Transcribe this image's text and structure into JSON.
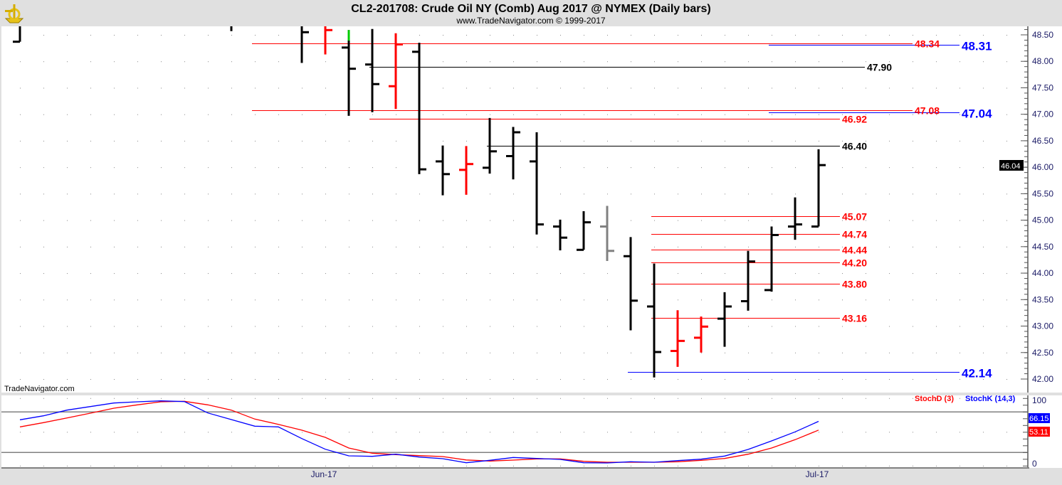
{
  "header": {
    "title": "CL2-201708:  Crude Oil NY (Comb) Aug 2017 @ NYMEX  (Daily bars)",
    "subtitle": "www.TradeNavigator.com © 1999-2017",
    "logo": "sextant-logo"
  },
  "watermark": "TradeNavigator.com",
  "colors": {
    "up": "#000000",
    "down": "#ff0000",
    "neutral": "#808080",
    "highlight": "#00cc00",
    "stochK": "#0000ff",
    "stochD": "#ff0000",
    "levelRed": "#ff0000",
    "levelBlue": "#0000ff",
    "levelBlack": "#000000"
  },
  "chart_data": [
    {
      "type": "ohlc",
      "title": "CL2-201708:  Crude Oil NY (Comb) Aug 2017 @ NYMEX  (Daily bars)",
      "x_tick_labels": [
        {
          "label": "Jun-17",
          "bar": 13
        },
        {
          "label": "Jul-17",
          "bar": 34
        }
      ],
      "y_ticks": [
        "48.50",
        "48.00",
        "47.50",
        "47.00",
        "46.50",
        "46.00",
        "45.50",
        "45.00",
        "44.50",
        "44.00",
        "43.50",
        "43.00",
        "42.50",
        "42.00"
      ],
      "ylim": [
        41.9,
        48.65
      ],
      "grid": "dotted",
      "last_price_label": "46.04",
      "bars": [
        {
          "o": 48.37,
          "h": 48.9,
          "l": 48.37,
          "c": 48.8,
          "color": "up"
        },
        null,
        null,
        null,
        null,
        null,
        null,
        null,
        null,
        {
          "o": 48.8,
          "h": 48.9,
          "l": 48.57,
          "c": 48.8,
          "color": "up"
        },
        null,
        null,
        {
          "o": 48.75,
          "h": 48.9,
          "l": 47.97,
          "c": 48.55,
          "color": "up"
        },
        {
          "o": 48.7,
          "h": 48.7,
          "l": 48.13,
          "c": 48.59,
          "color": "down"
        },
        {
          "o": 48.26,
          "h": 48.59,
          "l": 46.97,
          "c": 47.86,
          "color": "up",
          "highlight_from": 48.39
        },
        {
          "o": 47.94,
          "h": 48.61,
          "l": 47.04,
          "c": 47.57,
          "color": "up"
        },
        {
          "o": 47.53,
          "h": 48.53,
          "l": 47.1,
          "c": 48.32,
          "color": "down"
        },
        {
          "o": 48.18,
          "h": 48.35,
          "l": 45.87,
          "c": 45.96,
          "color": "up"
        },
        {
          "o": 46.11,
          "h": 46.41,
          "l": 45.47,
          "c": 45.87,
          "color": "up"
        },
        {
          "o": 45.95,
          "h": 46.4,
          "l": 45.48,
          "c": 46.06,
          "color": "down"
        },
        {
          "o": 45.99,
          "h": 46.93,
          "l": 45.88,
          "c": 46.3,
          "color": "up"
        },
        {
          "o": 46.21,
          "h": 46.76,
          "l": 45.77,
          "c": 46.66,
          "color": "up"
        },
        {
          "o": 46.11,
          "h": 46.66,
          "l": 44.73,
          "c": 44.92,
          "color": "up"
        },
        {
          "o": 44.88,
          "h": 45.01,
          "l": 44.43,
          "c": 44.67,
          "color": "up"
        },
        {
          "o": 44.44,
          "h": 45.17,
          "l": 44.44,
          "c": 44.96,
          "color": "up"
        },
        {
          "o": 44.88,
          "h": 45.27,
          "l": 44.23,
          "c": 44.42,
          "color": "neutral"
        },
        {
          "o": 44.32,
          "h": 44.68,
          "l": 42.92,
          "c": 43.48,
          "color": "up"
        },
        {
          "o": 43.37,
          "h": 44.18,
          "l": 42.03,
          "c": 42.51,
          "color": "up"
        },
        {
          "o": 42.53,
          "h": 43.3,
          "l": 42.23,
          "c": 42.72,
          "color": "down"
        },
        {
          "o": 42.78,
          "h": 43.18,
          "l": 42.5,
          "c": 42.99,
          "color": "down"
        },
        {
          "o": 43.14,
          "h": 43.64,
          "l": 42.61,
          "c": 43.37,
          "color": "up"
        },
        {
          "o": 43.47,
          "h": 44.42,
          "l": 43.29,
          "c": 44.22,
          "color": "up"
        },
        {
          "o": 43.68,
          "h": 44.88,
          "l": 43.65,
          "c": 44.72,
          "color": "up"
        },
        {
          "o": 44.88,
          "h": 45.43,
          "l": 44.63,
          "c": 44.92,
          "color": "up"
        },
        {
          "o": 44.88,
          "h": 46.34,
          "l": 44.88,
          "c": 46.04,
          "color": "up"
        }
      ],
      "levels": [
        {
          "label": "48.34",
          "price": 48.34,
          "color": "levelRed",
          "from_bar": 10,
          "kind": "long"
        },
        {
          "label": "48.31",
          "price": 48.31,
          "color": "levelBlue",
          "from_bar": 32,
          "kind": "blue"
        },
        {
          "label": "47.90",
          "price": 47.9,
          "color": "levelBlack",
          "from_bar": 15,
          "kind": "mid"
        },
        {
          "label": "47.08",
          "price": 47.08,
          "color": "levelRed",
          "from_bar": 10,
          "kind": "long"
        },
        {
          "label": "47.04",
          "price": 47.04,
          "color": "levelBlue",
          "from_bar": 32,
          "kind": "blue"
        },
        {
          "label": "46.92",
          "price": 46.92,
          "color": "levelRed",
          "from_bar": 15,
          "kind": "short"
        },
        {
          "label": "46.40",
          "price": 46.4,
          "color": "levelBlack",
          "from_bar": 20,
          "kind": "short"
        },
        {
          "label": "45.07",
          "price": 45.07,
          "color": "levelRed",
          "from_bar": 27,
          "kind": "short"
        },
        {
          "label": "44.74",
          "price": 44.74,
          "color": "levelRed",
          "from_bar": 27,
          "kind": "short"
        },
        {
          "label": "44.44",
          "price": 44.44,
          "color": "levelRed",
          "from_bar": 27,
          "kind": "short"
        },
        {
          "label": "44.20",
          "price": 44.2,
          "color": "levelRed",
          "from_bar": 27,
          "kind": "short"
        },
        {
          "label": "43.80",
          "price": 43.8,
          "color": "levelRed",
          "from_bar": 27,
          "kind": "short"
        },
        {
          "label": "43.16",
          "price": 43.16,
          "color": "levelRed",
          "from_bar": 27,
          "kind": "short"
        },
        {
          "label": "42.14",
          "price": 42.14,
          "color": "levelBlue",
          "from_bar": 26,
          "kind": "blue"
        }
      ]
    },
    {
      "type": "line",
      "ylim": [
        0,
        100
      ],
      "y_ticks": [
        "100",
        "0"
      ],
      "reference_lines": [
        80,
        20
      ],
      "legend": [
        {
          "label": "StochD (3)",
          "color": "stochD"
        },
        {
          "label": "StochK (14,3)",
          "color": "stochK"
        }
      ],
      "legend_placement": "top-right",
      "last_values": {
        "k": "66.15",
        "d": "53.11"
      },
      "series": [
        {
          "name": "StochK (14,3)",
          "color": "stochK",
          "values": [
            68.4,
            74.3,
            82.7,
            88,
            93.3,
            95,
            96.4,
            95.4,
            78.5,
            68.7,
            59,
            57.9,
            40.6,
            24.8,
            15,
            14.3,
            17.5,
            13.3,
            10.8,
            4.8,
            8.4,
            12.6,
            11.2,
            9.8,
            4.8,
            4.5,
            6.3,
            5.6,
            8,
            10.1,
            14.7,
            24.5,
            37.2,
            50.5,
            66.15
          ]
        },
        {
          "name": "StochD (3)",
          "color": "stochD",
          "values": [
            57.9,
            64.2,
            71.2,
            78.2,
            85.6,
            90.5,
            95,
            95.8,
            90.5,
            82.7,
            69.5,
            61.7,
            53,
            42.4,
            26.6,
            18.9,
            16.8,
            15.4,
            14,
            9,
            7.4,
            8.7,
            10.5,
            10.5,
            6.9,
            5.6,
            5.6,
            5.6,
            6.3,
            8.4,
            11.2,
            17.5,
            26.6,
            38.9,
            53.11
          ]
        }
      ]
    }
  ]
}
